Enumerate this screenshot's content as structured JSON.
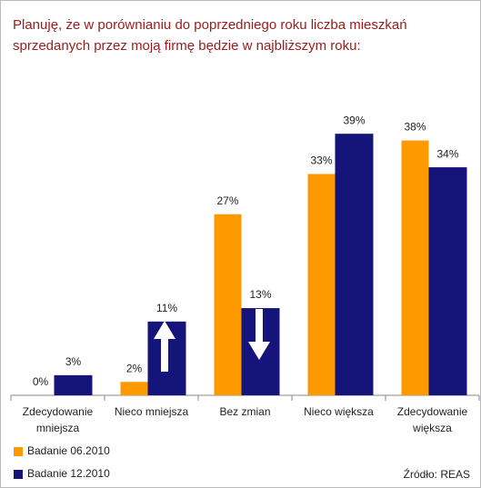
{
  "chart_data": {
    "type": "bar",
    "title": "Planuję, że w porównianiu do poprzedniego roku liczba mieszkań sprzedanych przez moją firmę będzie w najbliższym roku:",
    "categories": [
      "Zdecydowanie mniejsza",
      "Nieco mniejsza",
      "Bez zmian",
      "Nieco większa",
      "Zdecydowanie większa"
    ],
    "series": [
      {
        "name": "Badanie 06.2010",
        "color": "#ff9900",
        "values": [
          0,
          2,
          27,
          33,
          38
        ],
        "value_labels": [
          "0%",
          "2%",
          "27%",
          "33%",
          "38%"
        ]
      },
      {
        "name": "Badanie 12.2010",
        "color": "#14147a",
        "values": [
          3,
          11,
          13,
          39,
          34
        ],
        "value_labels": [
          "3%",
          "11%",
          "13%",
          "39%",
          "34%"
        ]
      }
    ],
    "source": "Źródło: REAS"
  }
}
